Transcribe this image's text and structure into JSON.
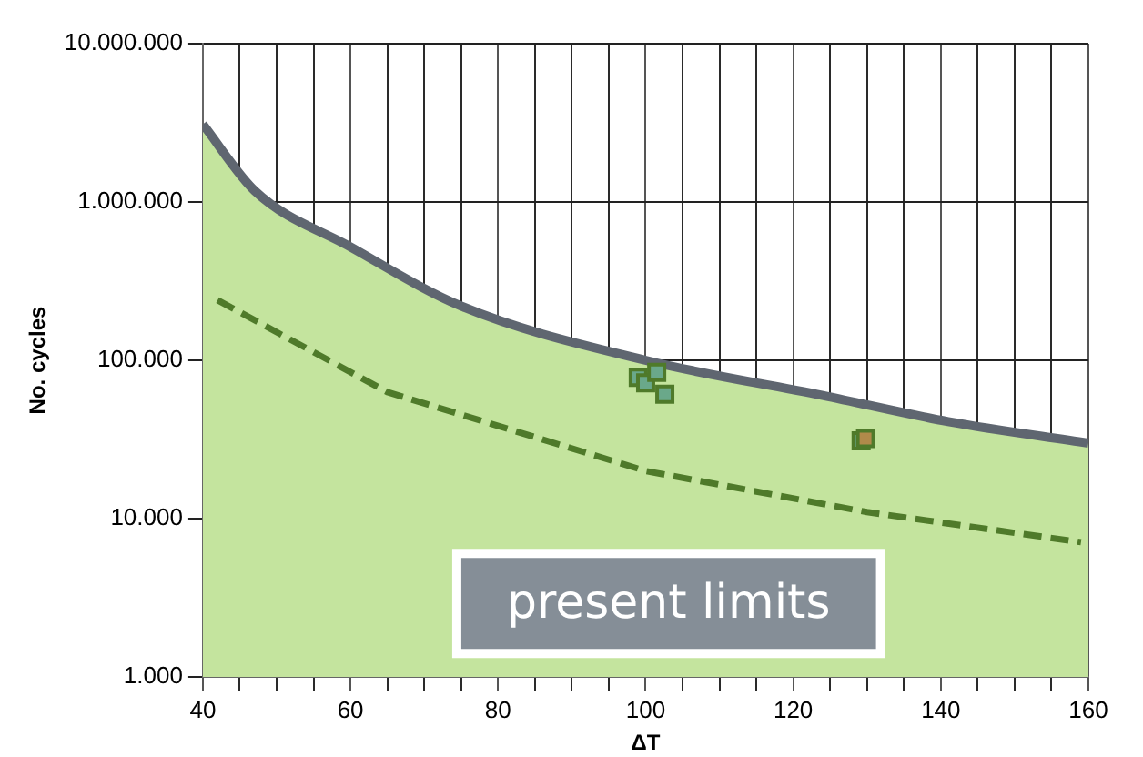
{
  "chart_data": {
    "type": "line",
    "xlabel": "ΔT",
    "ylabel": "No. cycles",
    "log": "y",
    "grid": true,
    "legend": false,
    "xlim": [
      40,
      160
    ],
    "xticks": [
      40,
      {
        "value": 45,
        "label": null
      },
      {
        "value": 50,
        "label": null
      },
      {
        "value": 55,
        "label": null
      },
      60,
      {
        "value": 65,
        "label": null
      },
      {
        "value": 70,
        "label": null
      },
      {
        "value": 75,
        "label": null
      },
      80,
      {
        "value": 85,
        "label": null
      },
      {
        "value": 90,
        "label": null
      },
      {
        "value": 95,
        "label": null
      },
      100,
      {
        "value": 105,
        "label": null
      },
      {
        "value": 110,
        "label": null
      },
      {
        "value": 115,
        "label": null
      },
      120,
      {
        "value": 125,
        "label": null
      },
      {
        "value": 130,
        "label": null
      },
      {
        "value": 135,
        "label": null
      },
      140,
      {
        "value": 145,
        "label": null
      },
      {
        "value": 150,
        "label": null
      },
      {
        "value": 155,
        "label": null
      },
      160
    ],
    "ylim": [
      1000,
      10000000
    ],
    "yticks": [
      {
        "value": 1000,
        "label": "1.000"
      },
      {
        "value": 10000,
        "label": "10.000"
      },
      {
        "value": 100000,
        "label": "100.000"
      },
      {
        "value": 1000000,
        "label": "1.000.000"
      },
      {
        "value": 10000000,
        "label": "10.000.000"
      }
    ],
    "series": [
      {
        "type": "area",
        "color": "#c4e49e",
        "x": [
          40,
          47,
          60,
          75,
          100,
          124,
          141,
          160
        ],
        "values": [
          3100000,
          1180000,
          520000,
          220000,
          100000,
          60000,
          41000,
          30000
        ]
      },
      {
        "line_style": "dashed",
        "color": "#4f7a2a",
        "x": [
          42,
          65,
          100,
          130,
          159
        ],
        "values": [
          240000,
          63000,
          20000,
          11000,
          7100
        ]
      },
      {
        "type": "scatter",
        "marker": "square",
        "color": "#6aa88a",
        "x": [
          99,
          100,
          101.5,
          102.6,
          129.2
        ],
        "values": [
          78000,
          72000,
          84000,
          61000,
          31000
        ]
      },
      {
        "type": "scatter",
        "marker": "square",
        "color": "#b08a4a",
        "x": [
          129.8
        ],
        "values": [
          32000
        ]
      }
    ],
    "annotations": [
      "present limits"
    ]
  }
}
